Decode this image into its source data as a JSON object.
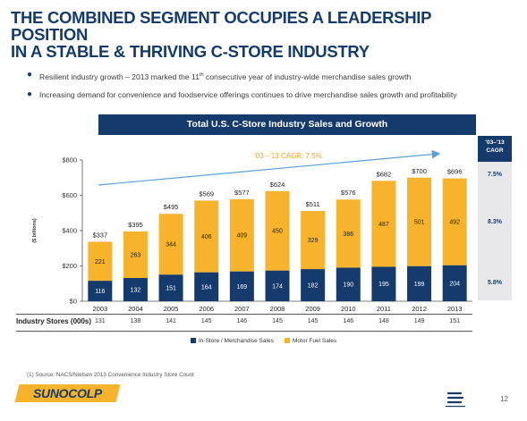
{
  "title_line1": "THE COMBINED SEGMENT OCCUPIES A LEADERSHIP POSITION",
  "title_line2": "IN A STABLE & THRIVING C-STORE INDUSTRY",
  "bullets": [
    {
      "pre": "Resilient industry growth – 2013 marked the 11",
      "sup": "th",
      "post": " consecutive year of industry-wide merchandise sales growth"
    },
    {
      "pre": "Increasing demand for convenience and foodservice offerings continues to drive merchandise sales growth and profitability",
      "sup": "",
      "post": ""
    }
  ],
  "banner": "Total U.S. C-Store Industry Sales and Growth",
  "cagr_header": {
    "line1": "'03–'13",
    "line2": "CAGR"
  },
  "cagr_values": [
    "7.5%",
    "8.3%",
    "5.8%"
  ],
  "stores_label": "Industry Stores (000s)",
  "footnote": "(1)   Source: NACS/Nielsen 2013 Convenience Industry Store Count",
  "logo_text": "SUNOCOLP",
  "page_number": "12",
  "colors": {
    "navy": "#143b6b",
    "gold": "#f7b32b",
    "arrow": "#5aa0d8",
    "cagr_text": "#f7a21c"
  },
  "chart_data": {
    "type": "bar",
    "stacked": true,
    "categories": [
      "2003",
      "2004",
      "2005",
      "2006",
      "2007",
      "2008",
      "2009",
      "2010",
      "2011",
      "2012",
      "2013"
    ],
    "series": [
      {
        "name": "In-Store / Merchandise Sales",
        "color": "#143b6b",
        "values": [
          116,
          132,
          151,
          164,
          169,
          174,
          182,
          190,
          195,
          199,
          204
        ]
      },
      {
        "name": "Motor Fuel Sales",
        "color": "#f7b32b",
        "values": [
          221,
          263,
          344,
          406,
          409,
          450,
          329,
          386,
          487,
          501,
          492
        ]
      }
    ],
    "totals": [
      "$337",
      "$395",
      "$495",
      "$569",
      "$577",
      "$624",
      "$511",
      "$576",
      "$682",
      "$700",
      "$696"
    ],
    "y_ticks": [
      "$0",
      "$200",
      "$400",
      "$600",
      "$800"
    ],
    "ylim": [
      0,
      800
    ],
    "ylabel": "($ billions)",
    "annotation": "'03 –'13 CAGR: 7.5%",
    "stores": [
      "131",
      "138",
      "141",
      "145",
      "146",
      "145",
      "145",
      "146",
      "148",
      "149",
      "151"
    ],
    "legend_position": "bottom"
  }
}
